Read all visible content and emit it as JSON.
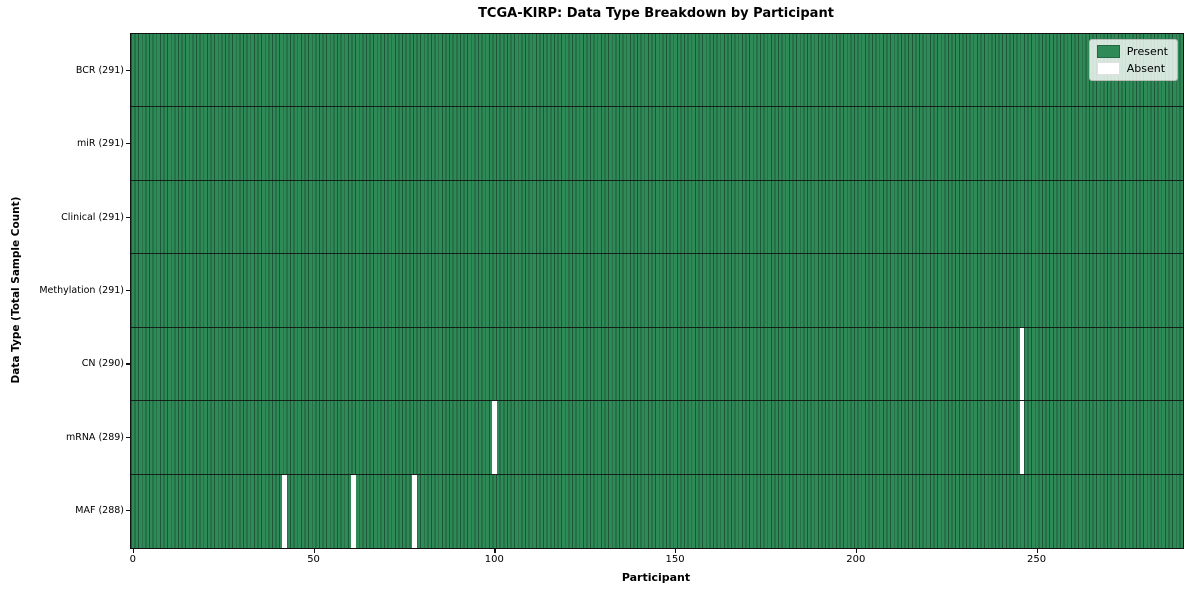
{
  "chart": {
    "title": "TCGA-KIRP: Data Type Breakdown by Participant",
    "xlabel": "Participant",
    "ylabel": "Data Type (Total Sample Count)",
    "legend": {
      "items": [
        {
          "label": "Present",
          "color": "#2e8b57"
        },
        {
          "label": "Absent",
          "color": "#ffffff"
        }
      ],
      "position": "upper right"
    },
    "colors": {
      "present": "#2e8b57",
      "present_edge": "#1e5737",
      "absent": "#ffffff"
    }
  },
  "chart_data": {
    "type": "heatmap",
    "title": "TCGA-KIRP: Data Type Breakdown by Participant",
    "xlabel": "Participant",
    "ylabel": "Data Type (Total Sample Count)",
    "n_participants": 291,
    "x_ticks": [
      0,
      50,
      100,
      150,
      200,
      250
    ],
    "x_range": [
      0,
      290
    ],
    "grid": false,
    "legend_entries": [
      "Present",
      "Absent"
    ],
    "legend_position": "upper right",
    "rows": [
      {
        "label": "BCR (291)",
        "data_type": "BCR",
        "present_count": 291,
        "absent_participants": []
      },
      {
        "label": "miR (291)",
        "data_type": "miR",
        "present_count": 291,
        "absent_participants": []
      },
      {
        "label": "Clinical (291)",
        "data_type": "Clinical",
        "present_count": 291,
        "absent_participants": []
      },
      {
        "label": "Methylation (291)",
        "data_type": "Methylation",
        "present_count": 291,
        "absent_participants": []
      },
      {
        "label": "CN (290)",
        "data_type": "CN",
        "present_count": 290,
        "absent_participants": [
          246
        ]
      },
      {
        "label": "mRNA (289)",
        "data_type": "mRNA",
        "present_count": 289,
        "absent_participants": [
          100,
          246
        ]
      },
      {
        "label": "MAF (288)",
        "data_type": "MAF",
        "present_count": 288,
        "absent_participants": [
          42,
          61,
          78
        ]
      }
    ]
  }
}
